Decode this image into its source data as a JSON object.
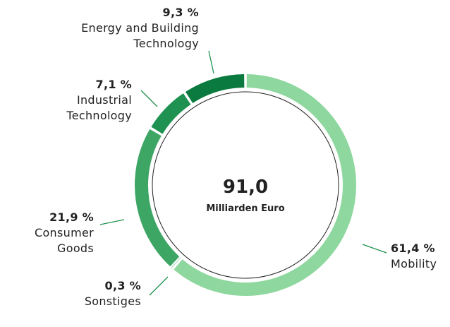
{
  "chart_data": {
    "type": "donut",
    "center_value": "91,0",
    "center_label": "Milliarden Euro",
    "categories": [
      "Mobility",
      "Sonstiges",
      "Consumer Goods",
      "Industrial Technology",
      "Energy and Building Technology"
    ],
    "values": [
      61.4,
      0.3,
      21.9,
      7.1,
      9.3
    ],
    "value_labels": [
      "61,4 %",
      "0,3 %",
      "21,9 %",
      "7,1 %",
      "9,3 %"
    ],
    "colors": [
      "#8ed79f",
      "#5dbb7b",
      "#3ea665",
      "#1f9252",
      "#0b7a3f"
    ]
  }
}
